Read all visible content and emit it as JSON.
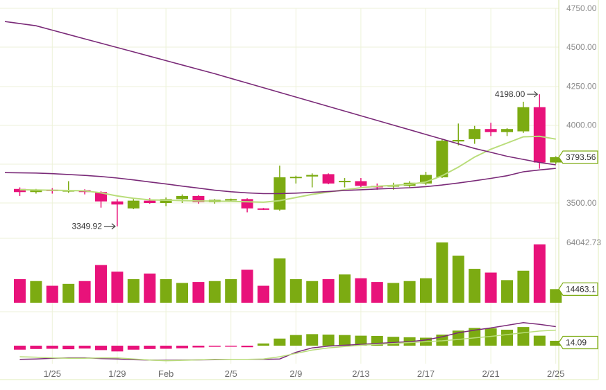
{
  "chart_data": {
    "type": "candlestick",
    "colors": {
      "up": "#7cab12",
      "down": "#e8127a",
      "ma_short": "#b9dd7a",
      "ma_long": "#7a2a78",
      "grid": "#edf2d8",
      "axis_text": "#8a8a8a"
    },
    "price_axis": {
      "ylim": [
        3400,
        4750
      ],
      "ticks": [
        "4750.00",
        "4500.00",
        "4250.00",
        "4000.00",
        "3500.00"
      ]
    },
    "date_ticks": [
      {
        "label": "1/25",
        "index": 2
      },
      {
        "label": "1/29",
        "index": 6
      },
      {
        "label": "Feb",
        "index": 9
      },
      {
        "label": "2/5",
        "index": 13
      },
      {
        "label": "2/9",
        "index": 17
      },
      {
        "label": "2/13",
        "index": 21
      },
      {
        "label": "2/17",
        "index": 25
      },
      {
        "label": "2/21",
        "index": 29
      },
      {
        "label": "2/25",
        "index": 33
      }
    ],
    "candles": [
      {
        "o": 3590,
        "h": 3600,
        "l": 3545,
        "c": 3570
      },
      {
        "o": 3570,
        "h": 3590,
        "l": 3560,
        "c": 3585
      },
      {
        "o": 3585,
        "h": 3595,
        "l": 3560,
        "c": 3578
      },
      {
        "o": 3578,
        "h": 3640,
        "l": 3565,
        "c": 3582
      },
      {
        "o": 3582,
        "h": 3588,
        "l": 3555,
        "c": 3570
      },
      {
        "o": 3570,
        "h": 3575,
        "l": 3470,
        "c": 3510
      },
      {
        "o": 3510,
        "h": 3525,
        "l": 3350,
        "c": 3490
      },
      {
        "o": 3465,
        "h": 3525,
        "l": 3460,
        "c": 3515
      },
      {
        "o": 3515,
        "h": 3530,
        "l": 3495,
        "c": 3500
      },
      {
        "o": 3500,
        "h": 3535,
        "l": 3480,
        "c": 3525
      },
      {
        "o": 3525,
        "h": 3555,
        "l": 3500,
        "c": 3545
      },
      {
        "o": 3545,
        "h": 3550,
        "l": 3495,
        "c": 3505
      },
      {
        "o": 3505,
        "h": 3525,
        "l": 3495,
        "c": 3520
      },
      {
        "o": 3520,
        "h": 3528,
        "l": 3512,
        "c": 3525
      },
      {
        "o": 3525,
        "h": 3530,
        "l": 3440,
        "c": 3465
      },
      {
        "o": 3465,
        "h": 3468,
        "l": 3455,
        "c": 3458
      },
      {
        "o": 3457,
        "h": 3740,
        "l": 3450,
        "c": 3665
      },
      {
        "o": 3665,
        "h": 3675,
        "l": 3625,
        "c": 3668
      },
      {
        "o": 3670,
        "h": 3690,
        "l": 3600,
        "c": 3680
      },
      {
        "o": 3685,
        "h": 3690,
        "l": 3620,
        "c": 3625
      },
      {
        "o": 3640,
        "h": 3660,
        "l": 3600,
        "c": 3642
      },
      {
        "o": 3640,
        "h": 3660,
        "l": 3595,
        "c": 3610
      },
      {
        "o": 3610,
        "h": 3625,
        "l": 3585,
        "c": 3600
      },
      {
        "o": 3605,
        "h": 3630,
        "l": 3585,
        "c": 3615
      },
      {
        "o": 3610,
        "h": 3640,
        "l": 3600,
        "c": 3630
      },
      {
        "o": 3625,
        "h": 3700,
        "l": 3615,
        "c": 3680
      },
      {
        "o": 3665,
        "h": 3910,
        "l": 3660,
        "c": 3900
      },
      {
        "o": 3895,
        "h": 4010,
        "l": 3870,
        "c": 3905
      },
      {
        "o": 3910,
        "h": 3995,
        "l": 3880,
        "c": 3975
      },
      {
        "o": 3975,
        "h": 4015,
        "l": 3930,
        "c": 3955
      },
      {
        "o": 3955,
        "h": 3980,
        "l": 3930,
        "c": 3975
      },
      {
        "o": 3960,
        "h": 4150,
        "l": 3950,
        "c": 4115
      },
      {
        "o": 4115,
        "h": 4198,
        "l": 3720,
        "c": 3760
      },
      {
        "o": 3760,
        "h": 3800,
        "l": 3750,
        "c": 3794
      }
    ],
    "ma_short": [
      3585,
      3583,
      3582,
      3580,
      3578,
      3565,
      3545,
      3530,
      3520,
      3518,
      3515,
      3513,
      3512,
      3510,
      3508,
      3505,
      3515,
      3535,
      3555,
      3570,
      3585,
      3598,
      3607,
      3613,
      3620,
      3635,
      3675,
      3730,
      3795,
      3845,
      3885,
      3925,
      3928,
      3910
    ],
    "ma_long_upper": [
      4665,
      4638,
      4610,
      4582,
      4554,
      4526,
      4498,
      4470,
      4442,
      4414,
      4386,
      4358,
      4330,
      4300,
      4270,
      4240,
      4210,
      4180,
      4150,
      4120,
      4090,
      4060,
      4030,
      4000,
      3970,
      3940,
      3910,
      3880,
      3850,
      3825,
      3800,
      3780,
      3760,
      3745
    ],
    "ma_long_lower": [
      3695,
      3692,
      3688,
      3683,
      3677,
      3670,
      3660,
      3648,
      3635,
      3622,
      3608,
      3595,
      3582,
      3572,
      3565,
      3560,
      3560,
      3563,
      3568,
      3574,
      3580,
      3585,
      3590,
      3594,
      3598,
      3605,
      3615,
      3628,
      3643,
      3658,
      3675,
      3700,
      3712,
      3722
    ],
    "annotations": {
      "high_label": "4198.00",
      "low_label": "3349.92",
      "last_price_label": "3793.56"
    },
    "volume": {
      "ylim": [
        0,
        80000
      ],
      "max_label": "64042.73",
      "last_label": "14463.1",
      "values": [
        25000,
        23000,
        18000,
        20000,
        23000,
        40000,
        33000,
        25000,
        31000,
        25000,
        21000,
        22000,
        23000,
        25000,
        35000,
        18000,
        47000,
        25000,
        23000,
        25000,
        30000,
        26000,
        22000,
        21000,
        23000,
        26000,
        64000,
        50000,
        36000,
        32000,
        24000,
        34000,
        62000,
        14463
      ]
    },
    "macd": {
      "last_label": "14.09",
      "hist": [
        -18,
        -15,
        -14,
        -16,
        -13,
        -20,
        -26,
        -18,
        -15,
        -14,
        -12,
        -8,
        -5,
        -4,
        -7,
        10,
        32,
        48,
        52,
        50,
        48,
        45,
        44,
        40,
        38,
        36,
        50,
        68,
        80,
        78,
        72,
        84,
        45,
        22
      ],
      "line_a": [
        -62,
        -60,
        -57,
        -55,
        -55,
        -58,
        -60,
        -63,
        -65,
        -66,
        -65,
        -64,
        -63,
        -62,
        -62,
        -62,
        -60,
        -30,
        -10,
        -2,
        2,
        6,
        10,
        14,
        18,
        26,
        40,
        58,
        70,
        80,
        92,
        104,
        96,
        86
      ],
      "line_b": [
        -50,
        -52,
        -55,
        -57,
        -57,
        -55,
        -55,
        -60,
        -65,
        -68,
        -66,
        -64,
        -62,
        -62,
        -62,
        -60,
        -50,
        -35,
        -20,
        -10,
        -4,
        2,
        6,
        10,
        14,
        18,
        22,
        28,
        35,
        42,
        50,
        58,
        66,
        70
      ]
    }
  }
}
